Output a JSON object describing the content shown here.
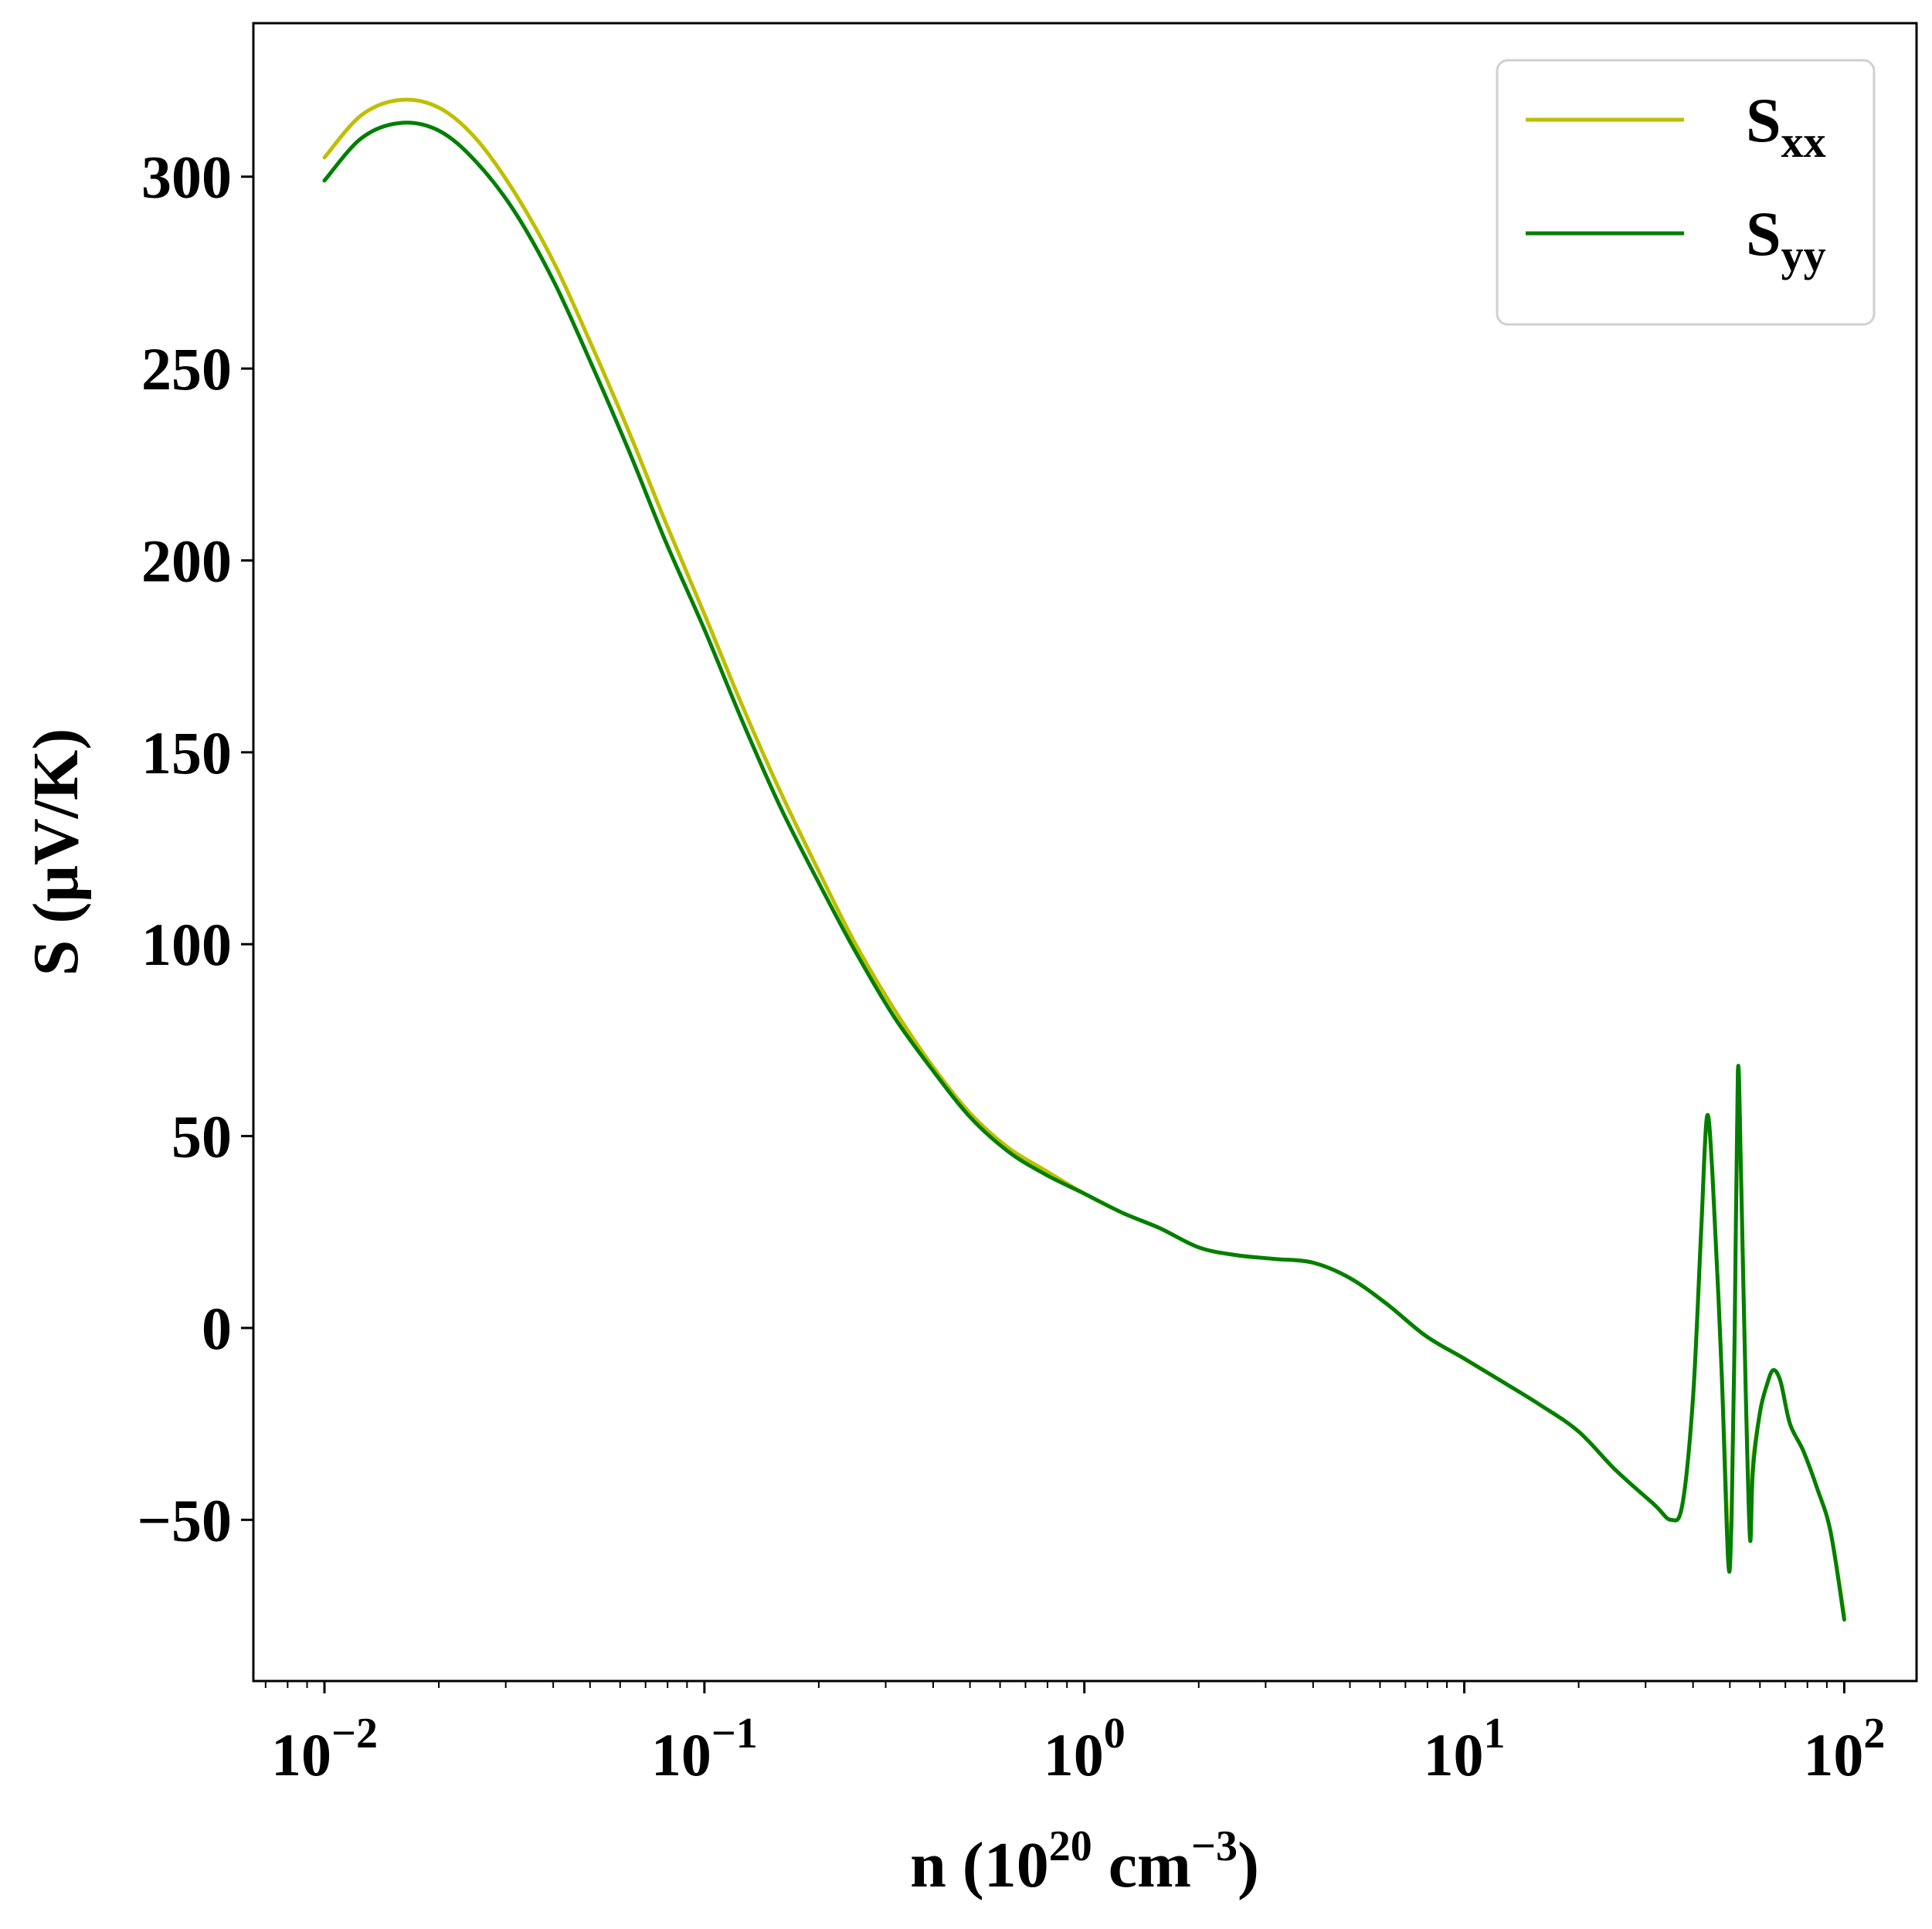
{
  "chart_data": {
    "type": "line",
    "xscale": "log",
    "xlim": [
      0.0065,
      155
    ],
    "ylim": [
      -92,
      340
    ],
    "grid": false,
    "legend_position": "top-right",
    "xlabel": {
      "base": "n (10",
      "sup1": "20",
      "mid": " cm",
      "sup2": "−3",
      "tail": ")"
    },
    "ylabel": "S (μV/K)",
    "xticks": [
      {
        "value": 0.01,
        "base": "10",
        "exp": "−2"
      },
      {
        "value": 0.1,
        "base": "10",
        "exp": "−1"
      },
      {
        "value": 1,
        "base": "10",
        "exp": "0"
      },
      {
        "value": 10,
        "base": "10",
        "exp": "1"
      },
      {
        "value": 100,
        "base": "10",
        "exp": "2"
      }
    ],
    "yticks": [
      {
        "value": -50,
        "label": "−50"
      },
      {
        "value": 0,
        "label": "0"
      },
      {
        "value": 50,
        "label": "50"
      },
      {
        "value": 100,
        "label": "100"
      },
      {
        "value": 150,
        "label": "150"
      },
      {
        "value": 200,
        "label": "200"
      },
      {
        "value": 250,
        "label": "250"
      },
      {
        "value": 300,
        "label": "300"
      }
    ],
    "series": [
      {
        "name": "S",
        "subscript": "xx",
        "color": "#bfbf00",
        "points": [
          [
            0.01,
            305
          ],
          [
            0.0125,
            316
          ],
          [
            0.0158,
            320
          ],
          [
            0.02,
            318
          ],
          [
            0.025,
            310
          ],
          [
            0.0316,
            296
          ],
          [
            0.04,
            278
          ],
          [
            0.05,
            257
          ],
          [
            0.063,
            234
          ],
          [
            0.079,
            210
          ],
          [
            0.1,
            186
          ],
          [
            0.126,
            162
          ],
          [
            0.158,
            140
          ],
          [
            0.2,
            119
          ],
          [
            0.25,
            100
          ],
          [
            0.316,
            83
          ],
          [
            0.4,
            68
          ],
          [
            0.5,
            56
          ],
          [
            0.63,
            47
          ],
          [
            0.79,
            41
          ],
          [
            1.0,
            35
          ],
          [
            1.26,
            30
          ],
          [
            1.58,
            26
          ],
          [
            2.0,
            21
          ],
          [
            2.5,
            19
          ],
          [
            3.16,
            18
          ],
          [
            4.0,
            17
          ],
          [
            5.0,
            13
          ],
          [
            6.3,
            6
          ],
          [
            7.9,
            -2
          ],
          [
            10,
            -8
          ],
          [
            12.6,
            -14
          ],
          [
            15.8,
            -20
          ],
          [
            20,
            -27
          ],
          [
            25,
            -37
          ],
          [
            31.6,
            -46
          ],
          [
            35,
            -50
          ],
          [
            37.5,
            -46
          ],
          [
            40,
            -18
          ],
          [
            42,
            25
          ],
          [
            43.5,
            54
          ],
          [
            45,
            40
          ],
          [
            47.5,
            -10
          ],
          [
            49.5,
            -55
          ],
          [
            50.5,
            -50
          ],
          [
            51.5,
            0
          ],
          [
            52.5,
            66
          ],
          [
            53.5,
            40
          ],
          [
            55,
            -15
          ],
          [
            56.5,
            -53
          ],
          [
            57.5,
            -35
          ],
          [
            60,
            -22
          ],
          [
            62.5,
            -15
          ],
          [
            65,
            -11
          ],
          [
            68,
            -14
          ],
          [
            72,
            -25
          ],
          [
            78,
            -32
          ],
          [
            85,
            -42
          ],
          [
            92,
            -53
          ],
          [
            100,
            -75
          ]
        ]
      },
      {
        "name": "S",
        "subscript": "yy",
        "color": "#007f00",
        "points": [
          [
            0.01,
            299
          ],
          [
            0.0125,
            310
          ],
          [
            0.0158,
            314
          ],
          [
            0.02,
            312
          ],
          [
            0.025,
            304
          ],
          [
            0.0316,
            291
          ],
          [
            0.04,
            273
          ],
          [
            0.05,
            252
          ],
          [
            0.063,
            229
          ],
          [
            0.079,
            205
          ],
          [
            0.1,
            182
          ],
          [
            0.126,
            158
          ],
          [
            0.158,
            136
          ],
          [
            0.2,
            116
          ],
          [
            0.25,
            98
          ],
          [
            0.316,
            81
          ],
          [
            0.4,
            67
          ],
          [
            0.5,
            55
          ],
          [
            0.63,
            46
          ],
          [
            0.79,
            40
          ],
          [
            1.0,
            35
          ],
          [
            1.26,
            30
          ],
          [
            1.58,
            26
          ],
          [
            2.0,
            21
          ],
          [
            2.5,
            19
          ],
          [
            3.16,
            18
          ],
          [
            4.0,
            17
          ],
          [
            5.0,
            13
          ],
          [
            6.3,
            6
          ],
          [
            7.9,
            -2
          ],
          [
            10,
            -8
          ],
          [
            12.6,
            -14
          ],
          [
            15.8,
            -20
          ],
          [
            20,
            -27
          ],
          [
            25,
            -37
          ],
          [
            31.6,
            -46
          ],
          [
            35,
            -50
          ],
          [
            37.5,
            -46
          ],
          [
            40,
            -18
          ],
          [
            42,
            25
          ],
          [
            43.5,
            55
          ],
          [
            45,
            40
          ],
          [
            47.5,
            -10
          ],
          [
            49.5,
            -61
          ],
          [
            50.5,
            -50
          ],
          [
            51.5,
            0
          ],
          [
            52.5,
            67
          ],
          [
            53.5,
            40
          ],
          [
            55,
            -15
          ],
          [
            56.5,
            -55
          ],
          [
            57.5,
            -37
          ],
          [
            60,
            -22
          ],
          [
            62.5,
            -15
          ],
          [
            65,
            -11
          ],
          [
            68,
            -14
          ],
          [
            72,
            -25
          ],
          [
            78,
            -32
          ],
          [
            85,
            -42
          ],
          [
            92,
            -53
          ],
          [
            100,
            -76
          ]
        ]
      }
    ]
  }
}
